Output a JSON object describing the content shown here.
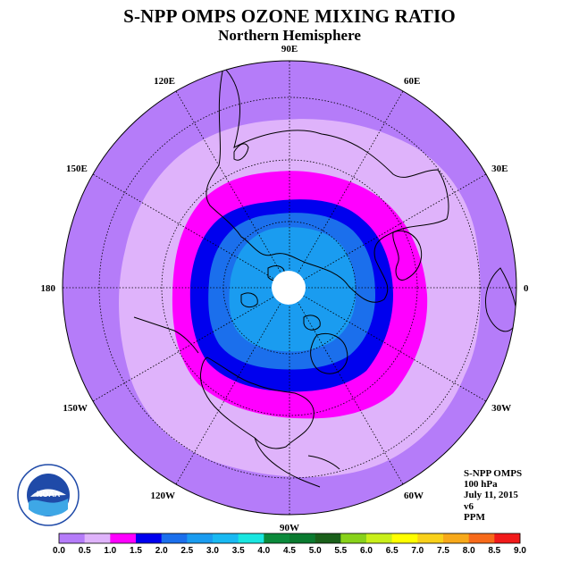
{
  "header": {
    "title": "S-NPP OMPS OZONE MIXING RATIO",
    "subtitle": "Northern Hemisphere"
  },
  "map": {
    "projection": "north-polar-stereographic",
    "longitude_labels": [
      {
        "text": "90E",
        "lon": 90
      },
      {
        "text": "60E",
        "lon": 60
      },
      {
        "text": "30E",
        "lon": 30
      },
      {
        "text": "0",
        "lon": 0
      },
      {
        "text": "30W",
        "lon": -30
      },
      {
        "text": "60W",
        "lon": -60
      },
      {
        "text": "90W",
        "lon": -90
      },
      {
        "text": "120W",
        "lon": -120
      },
      {
        "text": "150W",
        "lon": -150
      },
      {
        "text": "180",
        "lon": 180
      },
      {
        "text": "150E",
        "lon": 150
      },
      {
        "text": "120E",
        "lon": 120
      }
    ],
    "ozone_bands_ppm": [
      {
        "level": 0.0,
        "color": "#b57cf9"
      },
      {
        "level": 0.5,
        "color": "#dfb3fb"
      },
      {
        "level": 1.0,
        "color": "#ff00ff"
      },
      {
        "level": 1.5,
        "color": "#0000ee"
      },
      {
        "level": 2.0,
        "color": "#1b6fec"
      },
      {
        "level": 2.5,
        "color": "#1a9cf0"
      }
    ],
    "colors": {
      "land_outline": "#000000",
      "graticule": "#000000",
      "pole_hole": "#ffffff"
    }
  },
  "info": {
    "instrument": "S-NPP OMPS",
    "pressure": "100 hPa",
    "date": "July 11, 2015",
    "version": "v6",
    "units": "PPM"
  },
  "logo": {
    "text": "NOAA",
    "ring_text": "NATIONAL OCEANIC AND ATMOSPHERIC ADMINISTRATION · U.S. DEPARTMENT OF COMMERCE"
  },
  "colorbar": {
    "ticks": [
      "0.0",
      "0.5",
      "1.0",
      "1.5",
      "2.0",
      "2.5",
      "3.0",
      "3.5",
      "4.0",
      "4.5",
      "5.0",
      "5.5",
      "6.0",
      "6.5",
      "7.0",
      "7.5",
      "8.0",
      "8.5",
      "9.0"
    ],
    "colors": [
      "#b57cf9",
      "#dfb3fb",
      "#ff00ff",
      "#0000ee",
      "#1b6fec",
      "#1a9cf0",
      "#19b9f2",
      "#19e6e0",
      "#0b8a3b",
      "#0a7a2f",
      "#1a5f1a",
      "#88d21a",
      "#c9ef1a",
      "#ffff00",
      "#f9d11a",
      "#f7a91a",
      "#f76a1a",
      "#f11a1a",
      "#8b5a2b"
    ]
  }
}
